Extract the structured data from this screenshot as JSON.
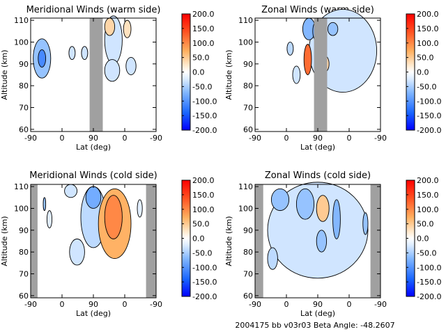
{
  "figure": {
    "footer": "2004175 bb v03r03   Beta Angle: -48.2607"
  },
  "chart_data": [
    {
      "type": "heatmap",
      "title": "Meridional Winds (warm side)",
      "xlabel": "Lat (deg)",
      "ylabel": "Altitude (km)",
      "xticks": [
        "-90",
        "0",
        "90",
        "0",
        "-90"
      ],
      "yticks": [
        "60",
        "70",
        "80",
        "90",
        "100",
        "110"
      ],
      "ylim": [
        59,
        111
      ],
      "gray_bands": [
        [
          0.47,
          0.575
        ]
      ],
      "blobs": [
        {
          "x": 0.09,
          "y": 92.5,
          "rx": 0.07,
          "ry": 9,
          "value": -60
        },
        {
          "x": 0.09,
          "y": 92.5,
          "rx": 0.03,
          "ry": 4,
          "value": -110
        },
        {
          "x": 0.33,
          "y": 95,
          "rx": 0.025,
          "ry": 3,
          "value": -30
        },
        {
          "x": 0.43,
          "y": 95,
          "rx": 0.025,
          "ry": 3,
          "value": -30
        },
        {
          "x": 0.8,
          "y": 89,
          "rx": 0.04,
          "ry": 4,
          "value": -30
        },
        {
          "x": 0.65,
          "y": 87,
          "rx": 0.06,
          "ry": 5,
          "value": -30
        },
        {
          "x": 0.63,
          "y": 107,
          "rx": 0.04,
          "ry": 4,
          "value": 40
        },
        {
          "x": 0.77,
          "y": 106,
          "rx": 0.03,
          "ry": 4,
          "value": 30
        },
        {
          "x": 0.66,
          "y": 101,
          "rx": 0.07,
          "ry": 11,
          "value": -30,
          "behind": true
        }
      ]
    },
    {
      "type": "heatmap",
      "title": "Zonal Winds (warm side)",
      "xlabel": "Lat (deg)",
      "ylabel": "Altitude (km)",
      "xticks": [
        "-90",
        "0",
        "90",
        "0",
        "-90"
      ],
      "yticks": [
        "60",
        "70",
        "80",
        "90",
        "100",
        "110"
      ],
      "ylim": [
        59,
        111
      ],
      "gray_bands": [
        [
          0.47,
          0.575
        ]
      ],
      "blobs": [
        {
          "x": 0.7,
          "y": 96,
          "rx": 0.27,
          "ry": 19,
          "value": -30,
          "behind": true
        },
        {
          "x": 0.43,
          "y": 106,
          "rx": 0.05,
          "ry": 5,
          "value": -70
        },
        {
          "x": 0.5,
          "y": 105,
          "rx": 0.04,
          "ry": 5,
          "value": -80
        },
        {
          "x": 0.42,
          "y": 92,
          "rx": 0.03,
          "ry": 7,
          "value": 120
        },
        {
          "x": 0.28,
          "y": 97,
          "rx": 0.025,
          "ry": 3,
          "value": -40
        },
        {
          "x": 0.55,
          "y": 90,
          "rx": 0.04,
          "ry": 4,
          "value": 40
        },
        {
          "x": 0.33,
          "y": 85,
          "rx": 0.03,
          "ry": 4,
          "value": -30
        },
        {
          "x": 0.62,
          "y": 106,
          "rx": 0.04,
          "ry": 3,
          "value": -60
        }
      ]
    },
    {
      "type": "heatmap",
      "title": "Meridional Winds (cold side)",
      "xlabel": "Lat (deg)",
      "ylabel": "Altitude (km)",
      "xticks": [
        "-90",
        "0",
        "90",
        "0",
        "-90"
      ],
      "yticks": [
        "60",
        "70",
        "80",
        "90",
        "100",
        "110"
      ],
      "ylim": [
        59,
        111
      ],
      "gray_bands": [
        [
          0.0,
          0.055
        ],
        [
          0.92,
          1.0
        ]
      ],
      "blobs": [
        {
          "x": 0.5,
          "y": 96,
          "rx": 0.1,
          "ry": 14,
          "value": -40
        },
        {
          "x": 0.5,
          "y": 105,
          "rx": 0.06,
          "ry": 5,
          "value": -80
        },
        {
          "x": 0.37,
          "y": 80,
          "rx": 0.06,
          "ry": 6,
          "value": -30
        },
        {
          "x": 0.32,
          "y": 108,
          "rx": 0.05,
          "ry": 3,
          "value": -30
        },
        {
          "x": 0.67,
          "y": 93,
          "rx": 0.13,
          "ry": 16,
          "value": 70
        },
        {
          "x": 0.66,
          "y": 96,
          "rx": 0.07,
          "ry": 10,
          "value": 100
        },
        {
          "x": 0.15,
          "y": 95,
          "rx": 0.02,
          "ry": 4,
          "value": -20
        },
        {
          "x": 0.87,
          "y": 100,
          "rx": 0.02,
          "ry": 4,
          "value": -20
        },
        {
          "x": 0.11,
          "y": 102,
          "rx": 0.01,
          "ry": 3,
          "value": -60
        }
      ]
    },
    {
      "type": "heatmap",
      "title": "Zonal Winds (cold side)",
      "xlabel": "Lat (deg)",
      "ylabel": "Altitude (km)",
      "xticks": [
        "-90",
        "0",
        "90",
        "0",
        "-90"
      ],
      "yticks": [
        "60",
        "70",
        "80",
        "90",
        "100",
        "110"
      ],
      "ylim": [
        59,
        111
      ],
      "gray_bands": [
        [
          0.0,
          0.065
        ],
        [
          0.92,
          1.0
        ]
      ],
      "blobs": [
        {
          "x": 0.5,
          "y": 90,
          "rx": 0.4,
          "ry": 22,
          "value": -30,
          "behind": true
        },
        {
          "x": 0.2,
          "y": 104,
          "rx": 0.07,
          "ry": 5,
          "value": -60
        },
        {
          "x": 0.4,
          "y": 102,
          "rx": 0.07,
          "ry": 7,
          "value": -60
        },
        {
          "x": 0.54,
          "y": 100,
          "rx": 0.05,
          "ry": 6,
          "value": 50
        },
        {
          "x": 0.65,
          "y": 95,
          "rx": 0.03,
          "ry": 9,
          "value": -70
        },
        {
          "x": 0.53,
          "y": 85,
          "rx": 0.04,
          "ry": 5,
          "value": -60
        },
        {
          "x": 0.14,
          "y": 77,
          "rx": 0.04,
          "ry": 5,
          "value": -40
        },
        {
          "x": 0.88,
          "y": 93,
          "rx": 0.02,
          "ry": 5,
          "value": -60
        }
      ]
    }
  ],
  "colorbar": {
    "ticks": [
      "200.0",
      "150.0",
      "100.0",
      "50.0",
      "0.0",
      "-50.0",
      "-100.0",
      "-150.0",
      "-200.0"
    ],
    "range": [
      -200,
      200
    ]
  }
}
